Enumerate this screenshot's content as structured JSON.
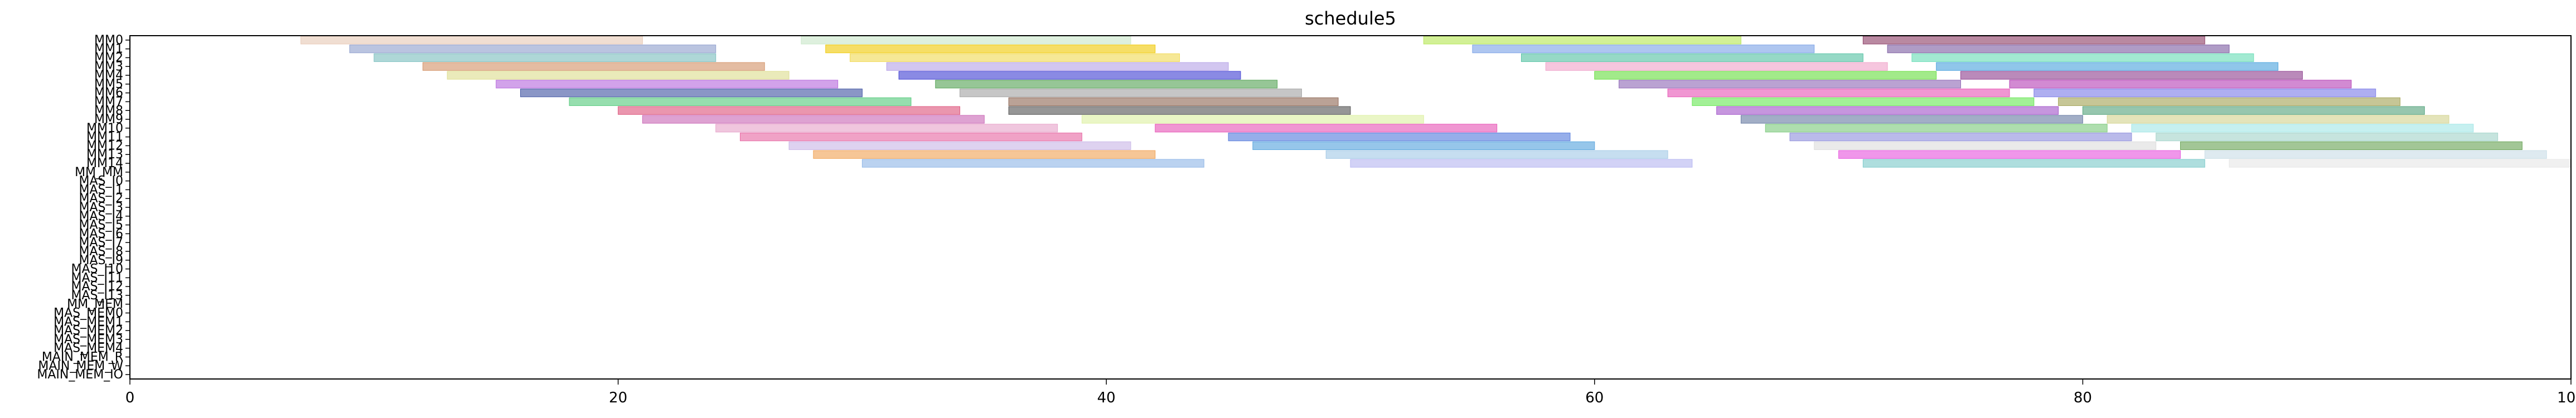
{
  "chart_data": {
    "type": "gantt",
    "title": "schedule5",
    "xlabel": "",
    "ylabel": "",
    "xlim": [
      0,
      100
    ],
    "grid": false,
    "legend": "none",
    "xticks": [
      0,
      20,
      40,
      60,
      80,
      100
    ],
    "yticks": [
      "MM0",
      "MM1",
      "MM2",
      "MM3",
      "MM4",
      "MM5",
      "MM6",
      "MM7",
      "MM8",
      "MM9",
      "MM10",
      "MM11",
      "MM12",
      "MM13",
      "MM14",
      "MM_MM",
      "MAS_I0",
      "MAS_I1",
      "MAS_I2",
      "MAS_I3",
      "MAS_I4",
      "MAS_I5",
      "MAS_I6",
      "MAS_I7",
      "MAS_I8",
      "MAS_I9",
      "MAS_I10",
      "MAS_I11",
      "MAS_I12",
      "MAS_I13",
      "MM_MEM",
      "MAS_MEM0",
      "MAS_MEM1",
      "MAS_MEM2",
      "MAS_MEM3",
      "MAS_MEM4",
      "MAIN_MEM_R",
      "MAIN_MEM_W",
      "MAIN_MEM_IO"
    ],
    "rows": [
      {
        "row": "MM0",
        "tasks": [
          [
            7,
            21,
            "#e6c8b4"
          ],
          [
            27.5,
            41,
            "#c8e6c8"
          ],
          [
            53,
            66,
            "#b4e650"
          ],
          [
            71,
            85,
            "#8b3a62"
          ]
        ]
      },
      {
        "row": "MM1",
        "tasks": [
          [
            9,
            24,
            "#8c9ccc"
          ],
          [
            28.5,
            42,
            "#f0c800"
          ],
          [
            55,
            69,
            "#78a0e6"
          ],
          [
            72,
            86,
            "#7a5aa0"
          ]
        ]
      },
      {
        "row": "MM2",
        "tasks": [
          [
            10,
            24,
            "#78bcbc"
          ],
          [
            29.5,
            43,
            "#f0d850"
          ],
          [
            57,
            71,
            "#50c0a0"
          ],
          [
            73,
            87,
            "#64dcb4"
          ]
        ]
      },
      {
        "row": "MM3",
        "tasks": [
          [
            12,
            26,
            "#d29064"
          ],
          [
            31,
            45,
            "#b4a0e6"
          ],
          [
            58,
            72,
            "#f0a0c8"
          ],
          [
            74,
            88,
            "#46a0dc"
          ]
        ]
      },
      {
        "row": "MM4",
        "tasks": [
          [
            13,
            27,
            "#dcdc8c"
          ],
          [
            31.5,
            45.5,
            "#3c3cd2"
          ],
          [
            60,
            74,
            "#64dc3c"
          ],
          [
            75,
            89,
            "#8c3c8c"
          ]
        ]
      },
      {
        "row": "MM5",
        "tasks": [
          [
            15,
            29,
            "#b464dc"
          ],
          [
            33,
            47,
            "#50a050"
          ],
          [
            61,
            75,
            "#8c64b4"
          ],
          [
            77,
            91,
            "#b43cb4"
          ]
        ]
      },
      {
        "row": "MM6",
        "tasks": [
          [
            16,
            30,
            "#3c50a0"
          ],
          [
            34,
            48,
            "#a0a0a0"
          ],
          [
            63,
            77,
            "#e650b4"
          ],
          [
            78,
            92,
            "#7878e6"
          ]
        ]
      },
      {
        "row": "MM7",
        "tasks": [
          [
            18,
            32,
            "#50c878"
          ],
          [
            36,
            49.5,
            "#8c6450"
          ],
          [
            64,
            78,
            "#64e650"
          ],
          [
            79,
            93,
            "#a0a050"
          ]
        ]
      },
      {
        "row": "MM8",
        "tasks": [
          [
            20,
            34,
            "#dc5078"
          ],
          [
            36,
            50,
            "#505050"
          ],
          [
            65,
            79,
            "#a050c8"
          ],
          [
            80,
            94,
            "#50a078"
          ]
        ]
      },
      {
        "row": "MM9",
        "tasks": [
          [
            21,
            35,
            "#c864b4"
          ],
          [
            39,
            53,
            "#dcf0a0"
          ],
          [
            66,
            80,
            "#6478a0"
          ],
          [
            81,
            95,
            "#d2d28c"
          ]
        ]
      },
      {
        "row": "MM10",
        "tasks": [
          [
            24,
            38,
            "#e6a0c8"
          ],
          [
            42,
            56,
            "#e650b4"
          ],
          [
            67,
            81,
            "#78c878"
          ],
          [
            82,
            96,
            "#a0e6e6"
          ]
        ]
      },
      {
        "row": "MM11",
        "tasks": [
          [
            25,
            39,
            "#e664a0"
          ],
          [
            45,
            59,
            "#5078dc"
          ],
          [
            68,
            82,
            "#8c8cdc"
          ],
          [
            83,
            97,
            "#a0d2c8"
          ]
        ]
      },
      {
        "row": "MM12",
        "tasks": [
          [
            27,
            41,
            "#c8b4e6"
          ],
          [
            46,
            60,
            "#50a0dc"
          ],
          [
            69,
            83,
            "#dcdcdc"
          ],
          [
            84,
            98,
            "#64a050"
          ]
        ]
      },
      {
        "row": "MM13",
        "tasks": [
          [
            28,
            42,
            "#f0a050"
          ],
          [
            49,
            63,
            "#a0c8e6"
          ],
          [
            70,
            84,
            "#e650dc"
          ],
          [
            85,
            99,
            "#c8dce6"
          ]
        ]
      },
      {
        "row": "MM14",
        "tasks": [
          [
            30,
            44,
            "#8cb4e6"
          ],
          [
            50,
            64,
            "#b4b4f0"
          ],
          [
            71,
            85,
            "#78c8c8"
          ],
          [
            86,
            100,
            "#e6e6e6"
          ]
        ]
      }
    ]
  }
}
